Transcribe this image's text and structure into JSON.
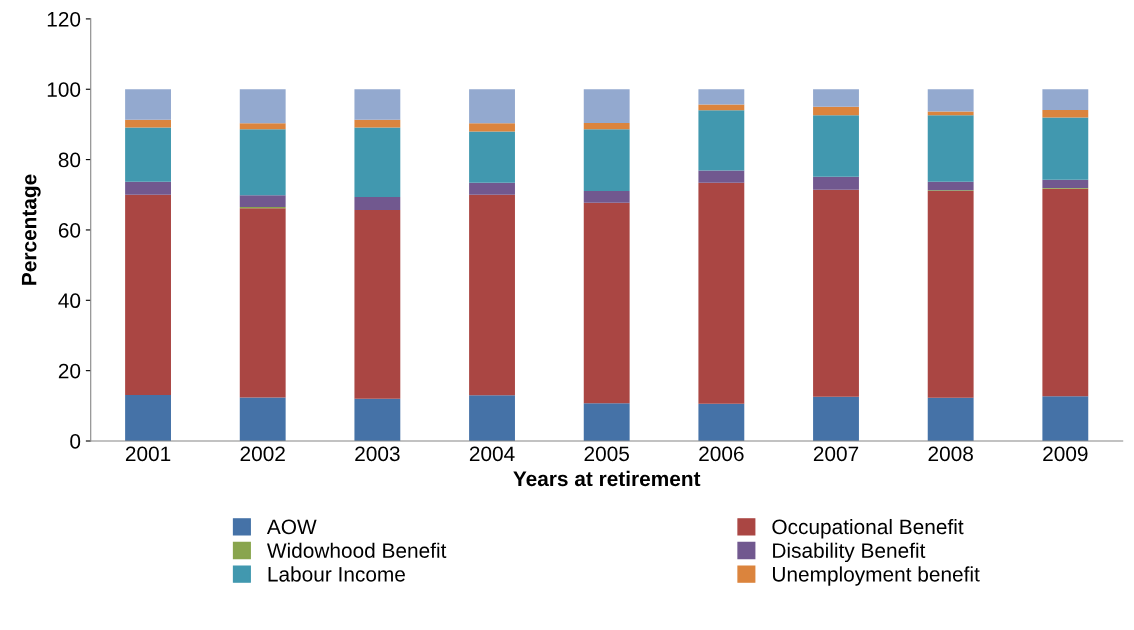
{
  "chart_data": {
    "type": "bar",
    "stacked": true,
    "xlabel": "Years at retirement",
    "ylabel": "Percentage",
    "categories": [
      "2001",
      "2002",
      "2003",
      "2004",
      "2005",
      "2006",
      "2007",
      "2008",
      "2009"
    ],
    "ylim": [
      0,
      120
    ],
    "yticks": [
      0,
      20,
      40,
      60,
      80,
      100,
      120
    ],
    "grid": false,
    "legend": "bottom",
    "series": [
      {
        "name": "AOW",
        "color": "#4572a7",
        "values": [
          13.1,
          12.4,
          12.0,
          13.0,
          10.7,
          10.6,
          12.6,
          12.3,
          12.7
        ]
      },
      {
        "name": "Occupational Benefit",
        "color": "#aa4643",
        "values": [
          56.9,
          53.8,
          53.7,
          57.0,
          57.0,
          62.8,
          58.8,
          58.8,
          59.0
        ]
      },
      {
        "name": "Widowhood Benefit",
        "color": "#89a54e",
        "values": [
          0,
          0.3,
          0,
          0,
          0,
          0,
          0,
          0.2,
          0.2
        ]
      },
      {
        "name": "Disability Benefit",
        "color": "#71588f",
        "values": [
          3.7,
          3.4,
          3.7,
          3.4,
          3.4,
          3.5,
          3.7,
          2.4,
          2.4
        ]
      },
      {
        "name": "Labour Income",
        "color": "#4198af",
        "values": [
          15.4,
          18.7,
          19.7,
          14.6,
          17.5,
          17.1,
          17.5,
          18.9,
          17.7
        ]
      },
      {
        "name": "Unemployment benefit",
        "color": "#db843d",
        "values": [
          2.2,
          1.7,
          2.2,
          2.3,
          1.8,
          1.7,
          2.4,
          1.1,
          2.1
        ]
      },
      {
        "color": "#93a9cf",
        "values": [
          8.7,
          9.7,
          8.7,
          9.7,
          9.6,
          4.3,
          5.0,
          6.3,
          5.9
        ]
      }
    ]
  }
}
